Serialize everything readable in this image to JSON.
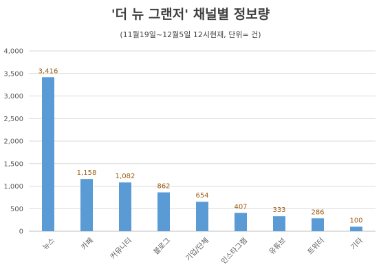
{
  "chart_data": {
    "type": "bar",
    "title": "'더 뉴 그랜저' 채널별 정보량",
    "subtitle": "(11월19일~12월5일 12시현재, 단위= 건)",
    "categories": [
      "뉴스",
      "카페",
      "커뮤니티",
      "블로그",
      "기업/단체",
      "인스타그램",
      "유튜브",
      "트위터",
      "기타"
    ],
    "values": [
      3416,
      1158,
      1082,
      862,
      654,
      407,
      333,
      286,
      100
    ],
    "data_labels": [
      "3,416",
      "1,158",
      "1,082",
      "862",
      "654",
      "407",
      "333",
      "286",
      "100"
    ],
    "y_ticks": [
      "0",
      "500",
      "1,000",
      "1,500",
      "2,000",
      "2,500",
      "3,000",
      "3,500",
      "4,000"
    ],
    "ylim": [
      0,
      4000
    ],
    "grid": true,
    "legend": "none",
    "bar_color": "#5b9bd5",
    "label_color": "#9c5b14",
    "grid_color": "#d9d9d9"
  }
}
